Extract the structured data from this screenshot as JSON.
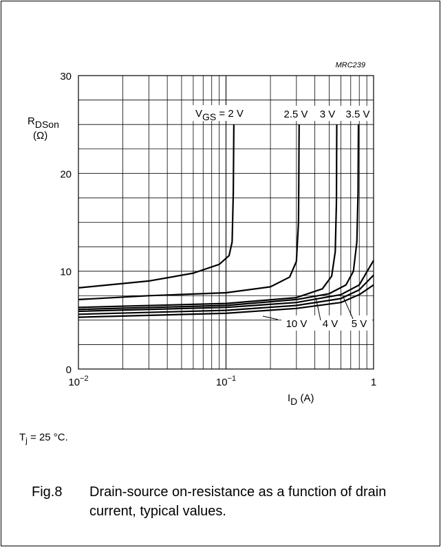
{
  "code": "MRC239",
  "condition": {
    "symbol": "T",
    "sub": "j",
    "rest": " = 25 °C."
  },
  "caption": {
    "number": "Fig.8",
    "text": "Drain-source on-resistance as a function of drain current, typical values."
  },
  "chart_data": {
    "type": "line",
    "title": "",
    "xlabel": "I_D (A)",
    "ylabel": "R_DSon (Ω)",
    "xscale": "log",
    "xlim": [
      0.01,
      1
    ],
    "ylim": [
      0,
      30
    ],
    "x_ticks": [
      "10^-2",
      "10^-1",
      "1"
    ],
    "y_ticks": [
      0,
      10,
      20,
      30
    ],
    "grid": true,
    "series": [
      {
        "name": "VGS = 2 V",
        "points": [
          [
            0.01,
            8.3
          ],
          [
            0.03,
            9.0
          ],
          [
            0.06,
            9.8
          ],
          [
            0.09,
            10.7
          ],
          [
            0.105,
            11.6
          ],
          [
            0.11,
            13.0
          ],
          [
            0.112,
            18.0
          ],
          [
            0.113,
            25.0
          ]
        ]
      },
      {
        "name": "2.5 V",
        "points": [
          [
            0.01,
            7.1
          ],
          [
            0.03,
            7.5
          ],
          [
            0.1,
            7.8
          ],
          [
            0.2,
            8.4
          ],
          [
            0.27,
            9.4
          ],
          [
            0.3,
            11.0
          ],
          [
            0.31,
            15.0
          ],
          [
            0.313,
            25.0
          ]
        ]
      },
      {
        "name": "3 V",
        "points": [
          [
            0.01,
            6.3
          ],
          [
            0.1,
            6.7
          ],
          [
            0.3,
            7.3
          ],
          [
            0.45,
            8.2
          ],
          [
            0.52,
            9.5
          ],
          [
            0.55,
            12.0
          ],
          [
            0.56,
            17.0
          ],
          [
            0.563,
            25.0
          ]
        ]
      },
      {
        "name": "3.5 V",
        "points": [
          [
            0.01,
            6.1
          ],
          [
            0.1,
            6.5
          ],
          [
            0.3,
            7.1
          ],
          [
            0.5,
            7.7
          ],
          [
            0.65,
            8.6
          ],
          [
            0.73,
            10.0
          ],
          [
            0.77,
            13.0
          ],
          [
            0.785,
            18.0
          ],
          [
            0.79,
            25.0
          ]
        ]
      },
      {
        "name": "4 V",
        "points": [
          [
            0.01,
            5.9
          ],
          [
            0.1,
            6.3
          ],
          [
            0.3,
            6.8
          ],
          [
            0.6,
            7.6
          ],
          [
            0.8,
            8.6
          ],
          [
            1.0,
            11.1
          ]
        ]
      },
      {
        "name": "5 V",
        "points": [
          [
            0.01,
            5.6
          ],
          [
            0.1,
            6.0
          ],
          [
            0.3,
            6.5
          ],
          [
            0.6,
            7.2
          ],
          [
            0.8,
            8.1
          ],
          [
            1.0,
            9.6
          ]
        ]
      },
      {
        "name": "10 V",
        "points": [
          [
            0.01,
            5.3
          ],
          [
            0.1,
            5.7
          ],
          [
            0.3,
            6.2
          ],
          [
            0.6,
            6.8
          ],
          [
            0.8,
            7.6
          ],
          [
            1.0,
            8.6
          ]
        ]
      }
    ],
    "annotations": [
      {
        "text": "V",
        "sub": "GS",
        "rest": " = 2 V"
      },
      {
        "text": "2.5 V"
      },
      {
        "text": "3 V"
      },
      {
        "text": "3.5 V"
      },
      {
        "text": "10 V"
      },
      {
        "text": "4 V"
      },
      {
        "text": "5 V"
      }
    ]
  }
}
